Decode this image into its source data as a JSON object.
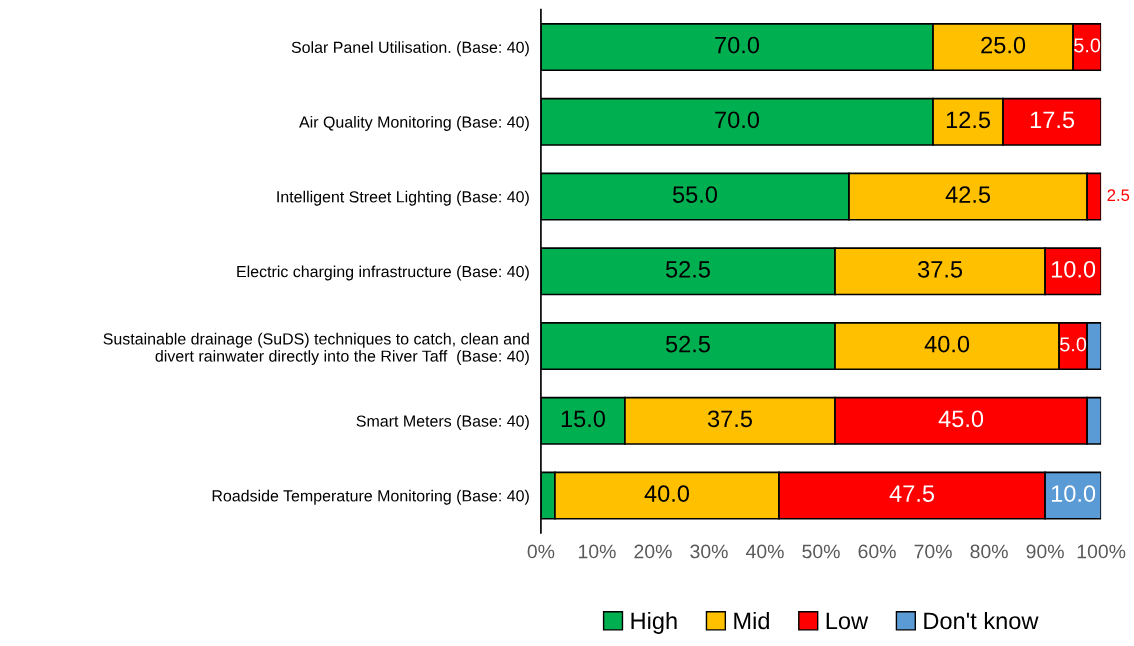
{
  "chart_data": {
    "type": "bar",
    "orientation": "horizontal",
    "stacked": true,
    "categories": [
      "Solar Panel Utilisation. (Base: 40)",
      "Air Quality Monitoring (Base: 40)",
      "Intelligent Street Lighting (Base: 40)",
      "Electric charging infrastructure (Base: 40)",
      "Sustainable drainage (SuDS) techniques to catch, clean and\ndivert rainwater directly into the River Taff  (Base: 40)",
      "Smart Meters (Base: 40)",
      "Roadside Temperature Monitoring (Base: 40)"
    ],
    "series": [
      {
        "name": "High",
        "color": "#00b050",
        "values": [
          70.0,
          70.0,
          55.0,
          52.5,
          52.5,
          15.0,
          2.5
        ],
        "value_labels": [
          "70.0",
          "70.0",
          "55.0",
          "52.5",
          "52.5",
          "15.0",
          null
        ]
      },
      {
        "name": "Mid",
        "color": "#ffc000",
        "values": [
          25.0,
          12.5,
          42.5,
          37.5,
          40.0,
          37.5,
          40.0
        ],
        "value_labels": [
          "25.0",
          "12.5",
          "42.5",
          "37.5",
          "40.0",
          "37.5",
          "40.0"
        ]
      },
      {
        "name": "Low",
        "color": "#ff0000",
        "values": [
          5.0,
          17.5,
          2.5,
          10.0,
          5.0,
          45.0,
          47.5
        ],
        "value_labels": [
          "5.0",
          "17.5",
          "2.5",
          "10.0",
          "5.0",
          "45.0",
          "47.5"
        ]
      },
      {
        "name": "Don't know",
        "color": "#5b9bd5",
        "values": [
          null,
          null,
          null,
          null,
          2.5,
          2.5,
          10.0
        ],
        "value_labels": [
          null,
          null,
          null,
          null,
          null,
          null,
          "10.0"
        ]
      }
    ],
    "xlim": [
      0,
      100
    ],
    "xticks": [
      {
        "value": 0,
        "label": "0%"
      },
      {
        "value": 10,
        "label": "10%"
      },
      {
        "value": 20,
        "label": "20%"
      },
      {
        "value": 30,
        "label": "30%"
      },
      {
        "value": 40,
        "label": "40%"
      },
      {
        "value": 50,
        "label": "50%"
      },
      {
        "value": 60,
        "label": "60%"
      },
      {
        "value": 70,
        "label": "70%"
      },
      {
        "value": 80,
        "label": "80%"
      },
      {
        "value": 90,
        "label": "90%"
      },
      {
        "value": 100,
        "label": "100%"
      }
    ],
    "grid": false,
    "legend": "bottom"
  }
}
